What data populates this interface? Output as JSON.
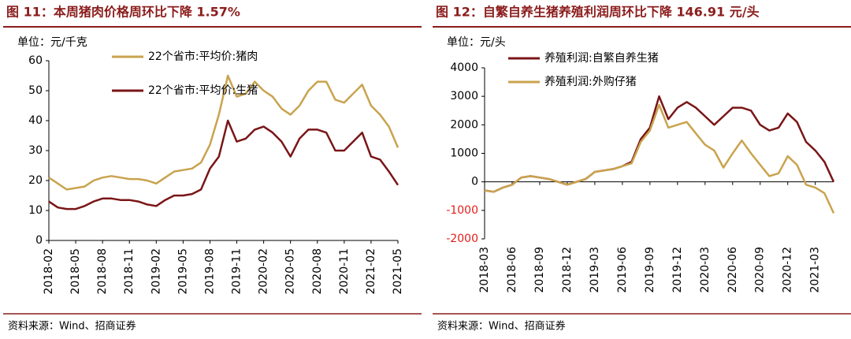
{
  "chart_data": [
    {
      "type": "line",
      "title": "图 11：本周猪肉价格周环比下降 1.57%",
      "unit_label": "单位：元/千克",
      "source": "资料来源：Wind、招商证券",
      "categories": [
        "2018-02",
        null,
        null,
        "2018-05",
        null,
        null,
        "2018-08",
        null,
        null,
        "2018-11",
        null,
        null,
        "2019-02",
        null,
        null,
        "2019-05",
        null,
        null,
        "2019-08",
        null,
        null,
        "2019-11",
        null,
        null,
        "2020-02",
        null,
        null,
        "2020-05",
        null,
        null,
        "2020-08",
        null,
        null,
        "2020-11",
        null,
        null,
        "2021-02",
        null,
        null,
        "2021-05"
      ],
      "series": [
        {
          "name": "22个省市:平均价:猪肉",
          "color": "#c9a34e",
          "values": [
            21,
            19,
            17,
            17.5,
            18,
            20,
            21,
            21.5,
            21,
            20.5,
            20.5,
            20,
            19,
            21,
            23,
            23.5,
            24,
            26,
            32,
            42,
            55,
            48,
            49,
            53,
            50,
            48,
            44,
            42,
            45,
            50,
            53,
            53,
            47,
            46,
            49,
            52,
            45,
            42,
            38,
            31
          ]
        },
        {
          "name": "22个省市:平均价:生猪",
          "color": "#7a1517",
          "values": [
            13,
            11,
            10.5,
            10.5,
            11.5,
            13,
            14,
            14,
            13.5,
            13.5,
            13,
            12,
            11.5,
            13.5,
            15,
            15,
            15.5,
            17,
            24,
            28,
            40,
            33,
            34,
            37,
            38,
            36,
            33,
            28,
            34,
            37,
            37,
            36,
            30,
            30,
            33,
            36,
            28,
            27,
            23,
            18.5
          ]
        }
      ],
      "ylim": [
        0,
        60
      ],
      "yticks": [
        0,
        10,
        20,
        30,
        40,
        50,
        60
      ],
      "legend": "top-left"
    },
    {
      "type": "line",
      "title": "图 12：自繁自养生猪养殖利润周环比下降 146.91 元/头",
      "unit_label": "单位：元/头",
      "source": "资料来源：Wind、招商证券",
      "categories": [
        "2018-03",
        null,
        null,
        "2018-06",
        null,
        null,
        "2018-09",
        null,
        null,
        "2018-12",
        null,
        null,
        "2019-03",
        null,
        null,
        "2019-06",
        null,
        null,
        "2019-09",
        null,
        null,
        "2019-12",
        null,
        null,
        "2020-03",
        null,
        null,
        "2020-06",
        null,
        null,
        "2020-09",
        null,
        null,
        "2020-12",
        null,
        null,
        "2021-03",
        null,
        null
      ],
      "series": [
        {
          "name": "养殖利润:自繁自养生猪",
          "color": "#7a1517",
          "values": [
            -300,
            -350,
            -200,
            -100,
            150,
            200,
            150,
            100,
            0,
            -100,
            0,
            100,
            350,
            400,
            450,
            550,
            700,
            1500,
            1900,
            3000,
            2200,
            2600,
            2800,
            2600,
            2300,
            2000,
            2300,
            2600,
            2600,
            2500,
            2000,
            1800,
            1900,
            2400,
            2100,
            1400,
            1100,
            700,
            0
          ]
        },
        {
          "name": "养殖利润:外购仔猪",
          "color": "#c9a34e",
          "values": [
            -300,
            -350,
            -200,
            -100,
            150,
            200,
            150,
            100,
            0,
            -100,
            0,
            100,
            350,
            400,
            450,
            550,
            650,
            1400,
            1800,
            2700,
            1900,
            2000,
            2100,
            1700,
            1300,
            1100,
            500,
            1000,
            1450,
            1000,
            600,
            200,
            300,
            900,
            600,
            -100,
            -200,
            -400,
            -1100
          ]
        }
      ],
      "ylim": [
        -2000,
        4000
      ],
      "yticks": [
        -2000,
        -1000,
        0,
        1000,
        2000,
        3000,
        4000
      ],
      "legend": "top-left",
      "negative_tick_color": "#e0201c"
    }
  ]
}
